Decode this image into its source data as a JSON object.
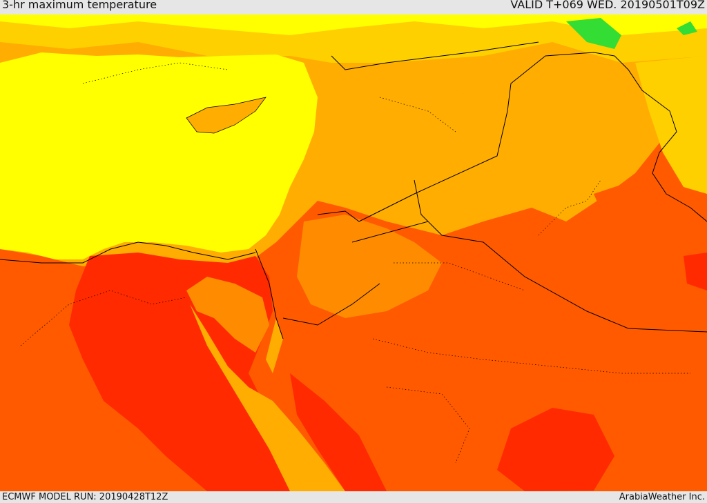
{
  "header": {
    "title": "3-hr maximum temperature",
    "valid_time": "VALID T+069 WED. 20190501T09Z"
  },
  "footer": {
    "model_run": "ECMWF MODEL RUN: 20190428T12Z",
    "credit": "ArabiaWeather Inc."
  },
  "colors": {
    "deep_red": "#ff2a00",
    "red_orange": "#ff5a00",
    "orange": "#ff8c00",
    "amber": "#ffad00",
    "gold": "#ffd000",
    "yellow": "#ffff00",
    "green": "#33dd33",
    "boundary": "#000000"
  }
}
